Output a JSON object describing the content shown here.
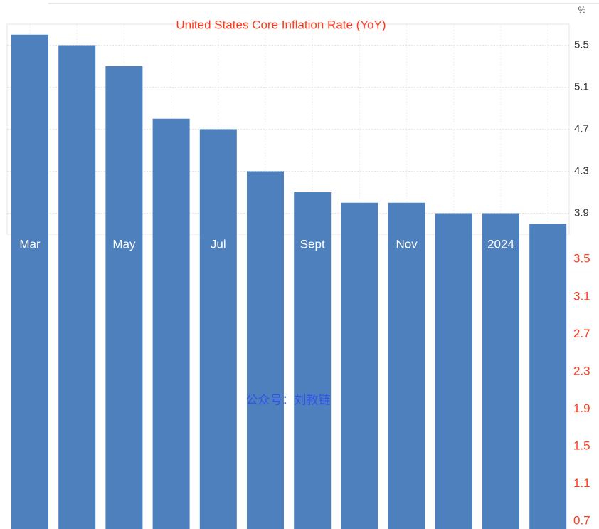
{
  "chart_data": {
    "type": "bar",
    "title": "United States Core Inflation Rate (YoY)",
    "y_unit": "%",
    "annotation": "公众号：刘教链",
    "categories": [
      "Mar",
      null,
      "May",
      null,
      "Jul",
      null,
      "Sept",
      null,
      "Nov",
      null,
      "2024",
      null
    ],
    "values": [
      5.6,
      5.5,
      5.3,
      4.8,
      4.7,
      4.3,
      4.1,
      4.0,
      4.0,
      3.9,
      3.9,
      3.8
    ],
    "color": "#4d80bd",
    "ylim": [
      3.7,
      5.7
    ],
    "yticks": [
      3.9,
      4.3,
      4.7,
      5.1,
      5.5
    ],
    "y2lim": [
      0.6,
      3.7
    ],
    "y2ticks": [
      0.7,
      1.1,
      1.5,
      1.9,
      2.3,
      2.7,
      3.1,
      3.5
    ],
    "grid": true
  }
}
